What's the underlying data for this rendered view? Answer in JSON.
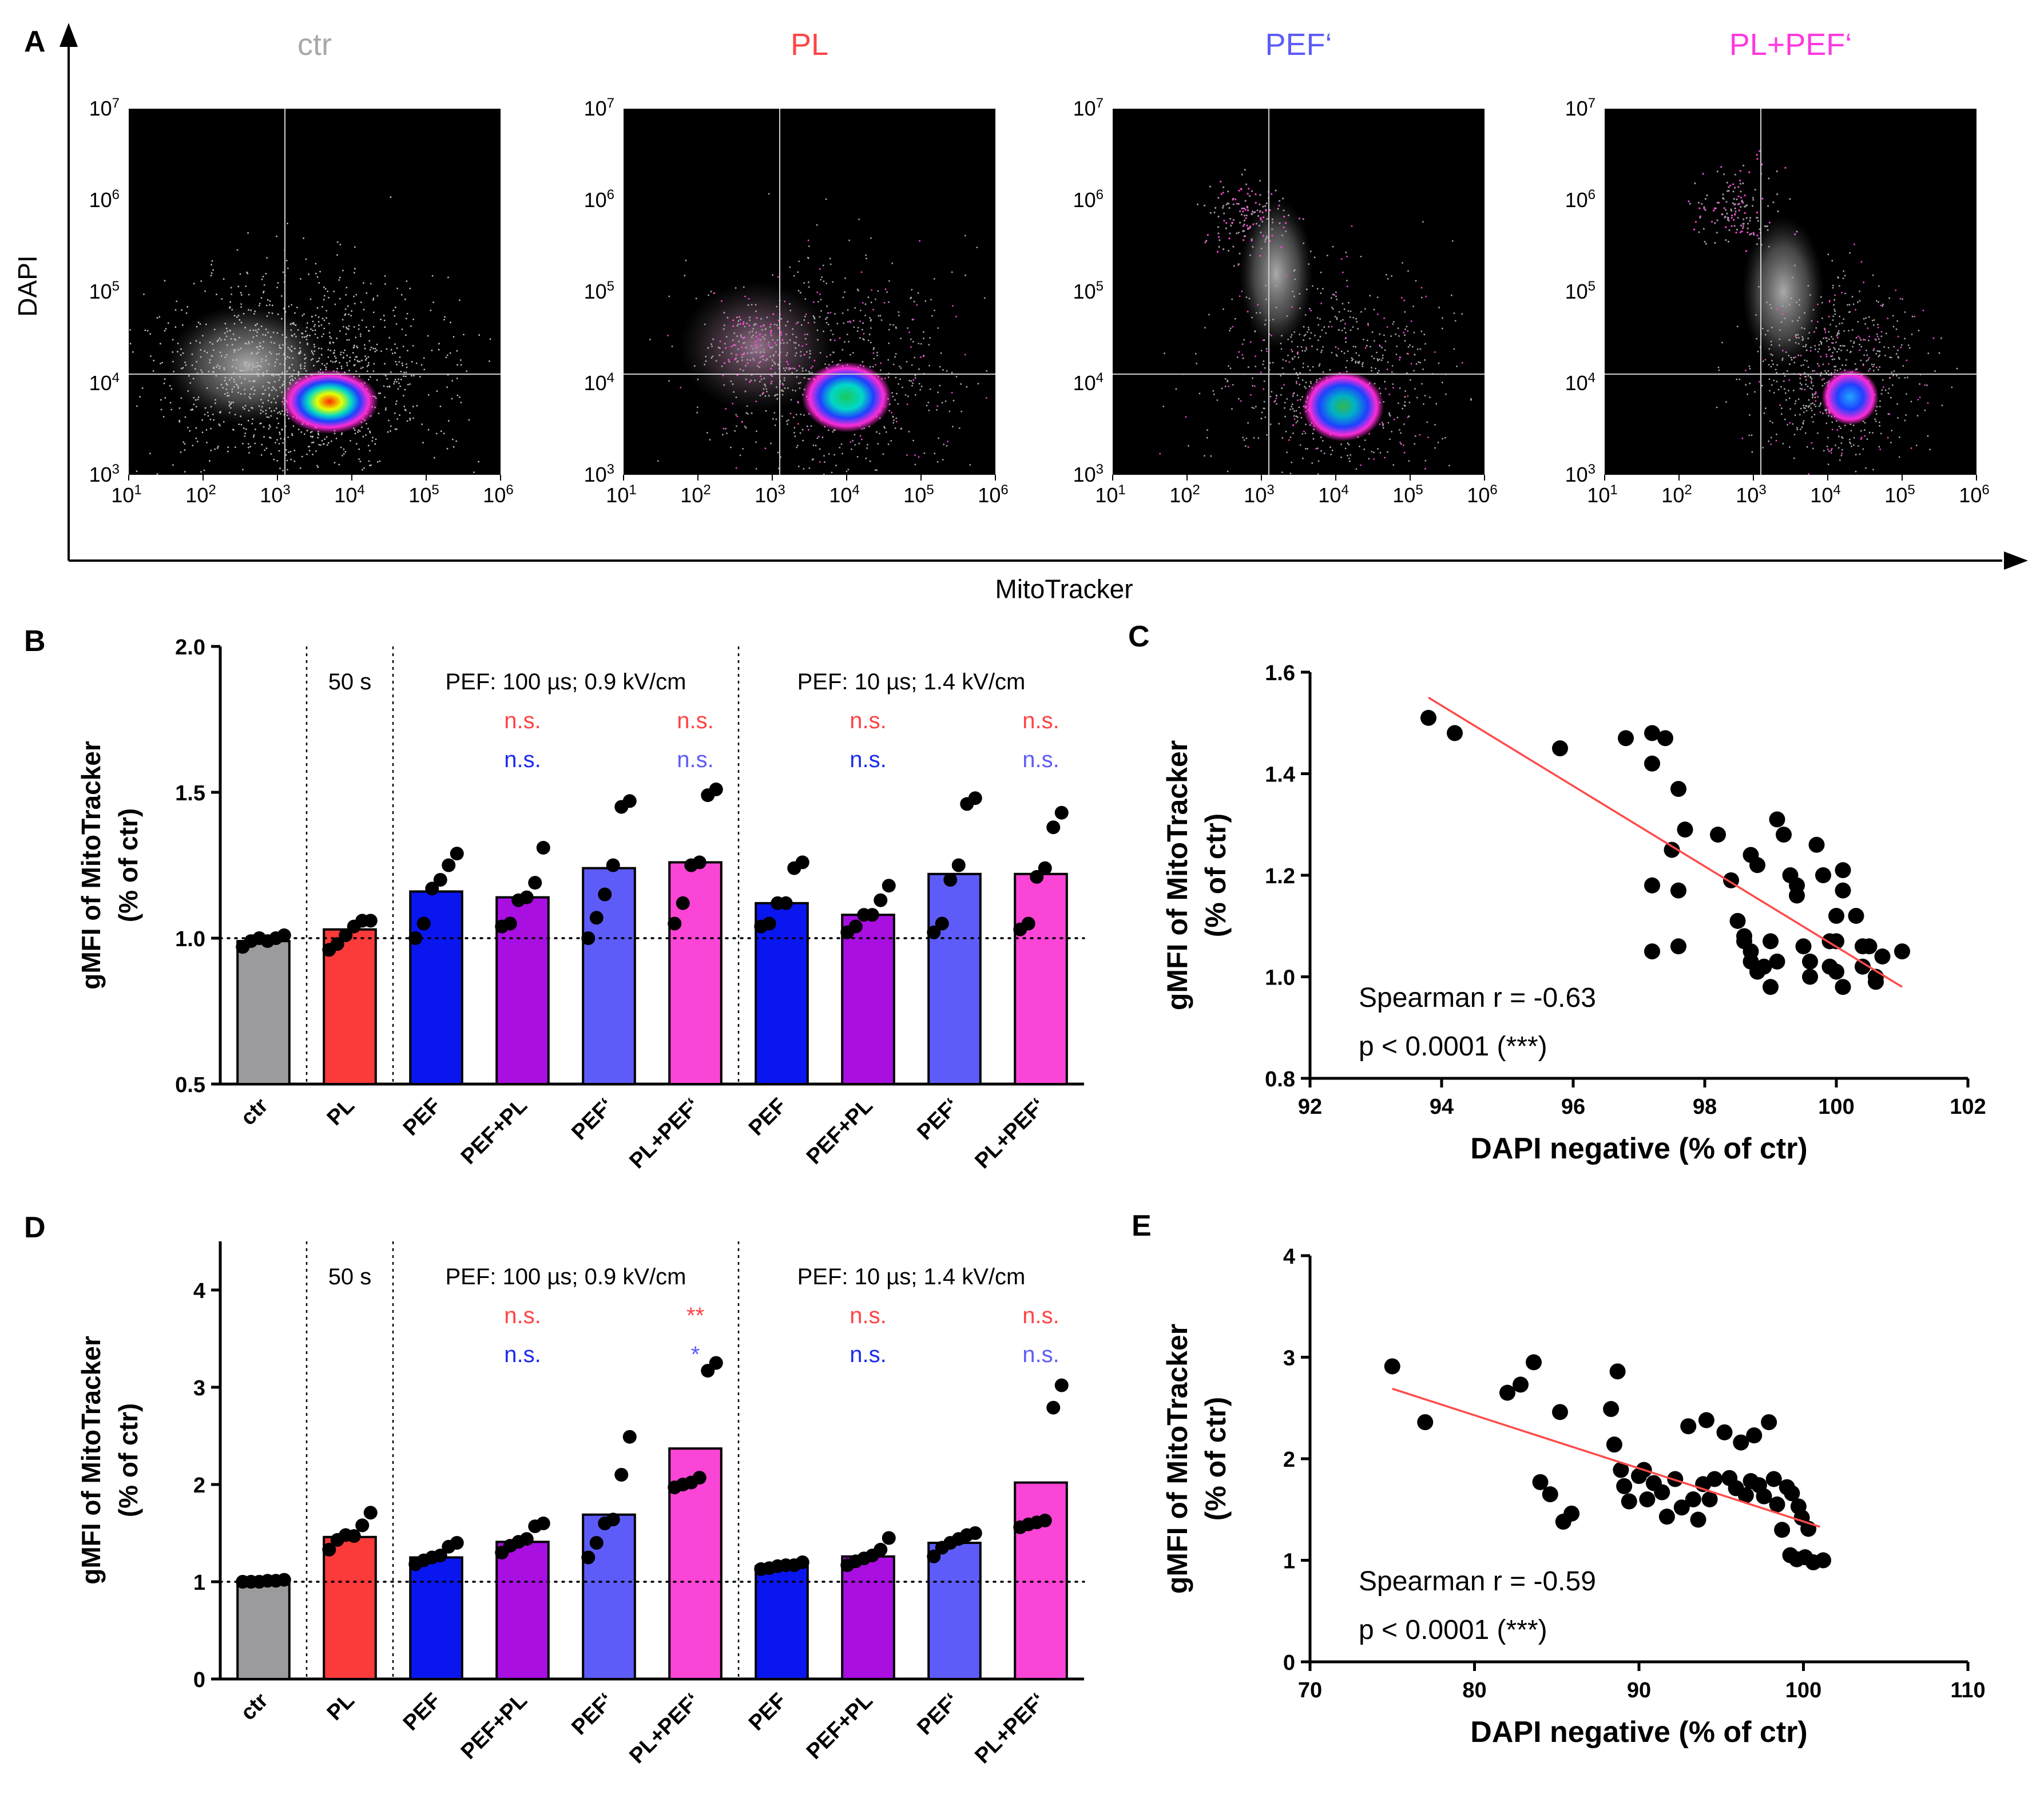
{
  "panel_labels": {
    "A": "A",
    "B": "B",
    "C": "C",
    "D": "D",
    "E": "E"
  },
  "colors": {
    "ctr": "#9b9a9c",
    "PL": "#fb3a3a",
    "PEF": "#0a16f0",
    "PEF+PL": "#a80fe0",
    "PEF'": "#5e5cf8",
    "PL+PEF'": "#fb45d6",
    "regression": "#ff4a4a",
    "sig_red": "#ff4444",
    "sig_blue": "#1a2bef",
    "sig_lightblue": "#5e5cf8",
    "title_ctr": "#a8a8a8",
    "title_PL": "#ff4444",
    "title_PEF": "#5e5cf8",
    "title_PLPEF": "#ff38e0"
  },
  "chart_data": [
    {
      "id": "A",
      "type": "scatter",
      "kind": "flow-cytometry-density",
      "xlabel": "MitoTracker",
      "ylabel": "DAPI",
      "x_scale": "log",
      "y_scale": "log",
      "xlim_log10": [
        1,
        6
      ],
      "ylim_log10": [
        3,
        7
      ],
      "x_ticks": [
        {
          "base": "10",
          "exp": "1"
        },
        {
          "base": "10",
          "exp": "2"
        },
        {
          "base": "10",
          "exp": "3"
        },
        {
          "base": "10",
          "exp": "4"
        },
        {
          "base": "10",
          "exp": "5"
        },
        {
          "base": "10",
          "exp": "6"
        }
      ],
      "y_ticks": [
        {
          "base": "10",
          "exp": "3"
        },
        {
          "base": "10",
          "exp": "4"
        },
        {
          "base": "10",
          "exp": "5"
        },
        {
          "base": "10",
          "exp": "6"
        },
        {
          "base": "10",
          "exp": "7"
        }
      ],
      "gates": {
        "x_log10": 3.1,
        "y_log10": 4.1
      },
      "plots": [
        {
          "title": "ctr",
          "title_color_key": "title_ctr",
          "gradient": "g-ctr",
          "haze": "g-haze",
          "center": [
            3.7,
            3.8
          ],
          "spread": [
            0.6,
            0.32
          ],
          "haze_center": [
            2.6,
            4.2
          ],
          "haze_spread": [
            2.0,
            1.2
          ],
          "upper_cluster": null
        },
        {
          "title": "PL",
          "title_color_key": "title_PL",
          "gradient": "g-pl",
          "haze": "g-haze2",
          "center": [
            4.0,
            3.85
          ],
          "spread": [
            0.55,
            0.35
          ],
          "haze_center": [
            2.8,
            4.4
          ],
          "haze_spread": [
            1.9,
            1.3
          ],
          "upper_cluster": [
            2.8,
            4.4
          ]
        },
        {
          "title": "PEF‘",
          "title_color_key": "title_PEF",
          "gradient": "g-pef",
          "haze": "g-haze",
          "center": [
            4.1,
            3.75
          ],
          "spread": [
            0.5,
            0.35
          ],
          "haze_center": [
            3.2,
            5.2
          ],
          "haze_spread": [
            0.9,
            1.5
          ],
          "upper_cluster": [
            2.8,
            5.8
          ]
        },
        {
          "title": "PL+PEF‘",
          "title_color_key": "title_PLPEF",
          "gradient": "g-plpef",
          "haze": "g-haze",
          "center": [
            4.3,
            3.85
          ],
          "spread": [
            0.35,
            0.28
          ],
          "haze_center": [
            3.4,
            5.0
          ],
          "haze_spread": [
            1.0,
            1.5
          ],
          "upper_cluster": [
            2.8,
            5.9
          ]
        }
      ]
    },
    {
      "id": "B",
      "type": "bar",
      "ylabel_line1": "gMFI of MitoTracker",
      "ylabel_line2": "(% of ctr)",
      "ylim": [
        0.5,
        2.0
      ],
      "y_ticks": [
        "0.5",
        "1.0",
        "1.5",
        "2.0"
      ],
      "y_tick_values": [
        0.5,
        1.0,
        1.5,
        2.0
      ],
      "reference_line": 1.0,
      "categories": [
        "ctr",
        "PL",
        "PEF",
        "PEF+PL",
        "PEF‘",
        "PL+PEF‘",
        "PEF",
        "PEF+PL",
        "PEF‘",
        "PL+PEF‘"
      ],
      "color_keys": [
        "ctr",
        "PL",
        "PEF",
        "PEF+PL",
        "PEF'",
        "PL+PEF'",
        "PEF",
        "PEF+PL",
        "PEF'",
        "PL+PEF'"
      ],
      "values": [
        0.99,
        1.03,
        1.16,
        1.14,
        1.24,
        1.26,
        1.12,
        1.08,
        1.22,
        1.22
      ],
      "points": [
        [
          0.97,
          0.99,
          1.0,
          0.99,
          1.0,
          1.01
        ],
        [
          0.96,
          0.98,
          1.01,
          1.04,
          1.06,
          1.06
        ],
        [
          1.0,
          1.05,
          1.17,
          1.2,
          1.25,
          1.29
        ],
        [
          1.04,
          1.05,
          1.13,
          1.14,
          1.19,
          1.31
        ],
        [
          1.0,
          1.07,
          1.15,
          1.25,
          1.45,
          1.47
        ],
        [
          1.05,
          1.12,
          1.25,
          1.26,
          1.49,
          1.51
        ],
        [
          1.04,
          1.05,
          1.12,
          1.12,
          1.24,
          1.26
        ],
        [
          1.02,
          1.04,
          1.08,
          1.08,
          1.13,
          1.18
        ],
        [
          1.02,
          1.05,
          1.2,
          1.25,
          1.46,
          1.48
        ],
        [
          1.03,
          1.05,
          1.21,
          1.24,
          1.38,
          1.43
        ]
      ],
      "group_notes": [
        "50 s",
        "PEF: 100 µs; 0.9 kV/cm",
        "PEF: 10 µs; 1.4 kV/cm"
      ],
      "significance": [
        {
          "bar": 3,
          "row": 1,
          "text": "n.s.",
          "color_key": "sig_red"
        },
        {
          "bar": 3,
          "row": 2,
          "text": "n.s.",
          "color_key": "sig_blue"
        },
        {
          "bar": 5,
          "row": 1,
          "text": "n.s.",
          "color_key": "sig_red"
        },
        {
          "bar": 5,
          "row": 2,
          "text": "n.s.",
          "color_key": "sig_lightblue"
        },
        {
          "bar": 7,
          "row": 1,
          "text": "n.s.",
          "color_key": "sig_red"
        },
        {
          "bar": 7,
          "row": 2,
          "text": "n.s.",
          "color_key": "sig_blue"
        },
        {
          "bar": 9,
          "row": 1,
          "text": "n.s.",
          "color_key": "sig_red"
        },
        {
          "bar": 9,
          "row": 2,
          "text": "n.s.",
          "color_key": "sig_lightblue"
        }
      ]
    },
    {
      "id": "C",
      "type": "scatter",
      "xlabel": "DAPI negative (% of ctr)",
      "ylabel_line1": "gMFI of MitoTracker",
      "ylabel_line2": "(% of ctr)",
      "xlim": [
        92,
        102
      ],
      "ylim": [
        0.8,
        1.6
      ],
      "x_ticks": [
        "92",
        "94",
        "96",
        "98",
        "100",
        "102"
      ],
      "x_tick_values": [
        92,
        94,
        96,
        98,
        100,
        102
      ],
      "y_ticks": [
        "0.8",
        "1.0",
        "1.2",
        "1.4",
        "1.6"
      ],
      "y_tick_values": [
        0.8,
        1.0,
        1.2,
        1.4,
        1.6
      ],
      "regression": {
        "x": [
          93.8,
          101.0
        ],
        "y": [
          1.55,
          0.98
        ]
      },
      "annotation_line1": "Spearman r = -0.63",
      "annotation_line2": "p < 0.0001 (***)",
      "points": [
        [
          93.8,
          1.51
        ],
        [
          94.2,
          1.48
        ],
        [
          95.8,
          1.45
        ],
        [
          96.8,
          1.47
        ],
        [
          97.2,
          1.48
        ],
        [
          97.4,
          1.47
        ],
        [
          97.2,
          1.42
        ],
        [
          97.6,
          1.37
        ],
        [
          97.7,
          1.29
        ],
        [
          97.5,
          1.25
        ],
        [
          97.6,
          1.17
        ],
        [
          97.2,
          1.18
        ],
        [
          97.2,
          1.05
        ],
        [
          97.6,
          1.06
        ],
        [
          98.2,
          1.28
        ],
        [
          98.4,
          1.19
        ],
        [
          98.5,
          1.11
        ],
        [
          98.6,
          1.08
        ],
        [
          98.7,
          1.24
        ],
        [
          98.8,
          1.22
        ],
        [
          98.6,
          1.07
        ],
        [
          98.7,
          1.05
        ],
        [
          98.7,
          1.03
        ],
        [
          98.8,
          1.01
        ],
        [
          98.9,
          1.02
        ],
        [
          99.0,
          1.07
        ],
        [
          99.0,
          0.98
        ],
        [
          99.1,
          1.03
        ],
        [
          99.1,
          1.31
        ],
        [
          99.2,
          1.28
        ],
        [
          99.3,
          1.2
        ],
        [
          99.4,
          1.16
        ],
        [
          99.4,
          1.18
        ],
        [
          99.5,
          1.06
        ],
        [
          99.6,
          1.03
        ],
        [
          99.7,
          1.26
        ],
        [
          99.8,
          1.2
        ],
        [
          99.9,
          1.07
        ],
        [
          99.9,
          1.02
        ],
        [
          100.0,
          1.07
        ],
        [
          100.0,
          1.12
        ],
        [
          100.1,
          1.17
        ],
        [
          100.1,
          1.21
        ],
        [
          100.0,
          1.01
        ],
        [
          100.1,
          0.98
        ],
        [
          100.3,
          1.12
        ],
        [
          100.4,
          1.06
        ],
        [
          100.4,
          1.02
        ],
        [
          100.5,
          1.06
        ],
        [
          100.6,
          1.0
        ],
        [
          100.7,
          1.04
        ],
        [
          101.0,
          1.05
        ],
        [
          99.6,
          1.0
        ],
        [
          100.6,
          0.99
        ]
      ]
    },
    {
      "id": "D",
      "type": "bar",
      "ylabel_line1": "gMFI of MitoTracker",
      "ylabel_line2": "(% of ctr)",
      "ylim": [
        0,
        4.5
      ],
      "y_ticks": [
        "0",
        "1",
        "2",
        "3",
        "4"
      ],
      "y_tick_values": [
        0,
        1,
        2,
        3,
        4
      ],
      "reference_line": 1.0,
      "categories": [
        "ctr",
        "PL",
        "PEF",
        "PEF+PL",
        "PEF‘",
        "PL+PEF‘",
        "PEF",
        "PEF+PL",
        "PEF‘",
        "PL+PEF‘"
      ],
      "color_keys": [
        "ctr",
        "PL",
        "PEF",
        "PEF+PL",
        "PEF'",
        "PL+PEF'",
        "PEF",
        "PEF+PL",
        "PEF'",
        "PL+PEF'"
      ],
      "values": [
        1.01,
        1.46,
        1.25,
        1.41,
        1.69,
        2.37,
        1.16,
        1.26,
        1.4,
        2.02
      ],
      "points": [
        [
          1.0,
          1.0,
          1.0,
          1.01,
          1.01,
          1.02
        ],
        [
          1.33,
          1.43,
          1.48,
          1.47,
          1.58,
          1.71
        ],
        [
          1.18,
          1.22,
          1.25,
          1.27,
          1.36,
          1.4
        ],
        [
          1.3,
          1.37,
          1.41,
          1.44,
          1.57,
          1.6
        ],
        [
          1.25,
          1.4,
          1.6,
          1.64,
          2.1,
          2.49
        ],
        [
          1.97,
          2.0,
          2.02,
          2.07,
          3.17,
          3.25
        ],
        [
          1.13,
          1.14,
          1.16,
          1.17,
          1.17,
          1.2
        ],
        [
          1.17,
          1.21,
          1.24,
          1.27,
          1.33,
          1.45
        ],
        [
          1.26,
          1.35,
          1.4,
          1.44,
          1.48,
          1.5
        ],
        [
          1.56,
          1.59,
          1.61,
          1.63,
          2.79,
          3.02
        ]
      ],
      "group_notes": [
        "50 s",
        "PEF: 100 µs; 0.9 kV/cm",
        "PEF: 10 µs; 1.4 kV/cm"
      ],
      "significance": [
        {
          "bar": 3,
          "row": 1,
          "text": "n.s.",
          "color_key": "sig_red"
        },
        {
          "bar": 3,
          "row": 2,
          "text": "n.s.",
          "color_key": "sig_blue"
        },
        {
          "bar": 5,
          "row": 1,
          "text": "**",
          "color_key": "sig_red"
        },
        {
          "bar": 5,
          "row": 2,
          "text": "*",
          "color_key": "sig_lightblue"
        },
        {
          "bar": 7,
          "row": 1,
          "text": "n.s.",
          "color_key": "sig_red"
        },
        {
          "bar": 7,
          "row": 2,
          "text": "n.s.",
          "color_key": "sig_blue"
        },
        {
          "bar": 9,
          "row": 1,
          "text": "n.s.",
          "color_key": "sig_red"
        },
        {
          "bar": 9,
          "row": 2,
          "text": "n.s.",
          "color_key": "sig_lightblue"
        }
      ]
    },
    {
      "id": "E",
      "type": "scatter",
      "xlabel": "DAPI negative (% of ctr)",
      "ylabel_line1": "gMFI of MitoTracker",
      "ylabel_line2": "(% of ctr)",
      "xlim": [
        70,
        110
      ],
      "ylim": [
        0,
        4
      ],
      "x_ticks": [
        "70",
        "80",
        "90",
        "100",
        "110"
      ],
      "x_tick_values": [
        70,
        80,
        90,
        100,
        110
      ],
      "y_ticks": [
        "0",
        "1",
        "2",
        "3",
        "4"
      ],
      "y_tick_values": [
        0,
        1,
        2,
        3,
        4
      ],
      "regression": {
        "x": [
          75.0,
          101.0
        ],
        "y": [
          2.69,
          1.33
        ]
      },
      "annotation_line1": "Spearman r = -0.59",
      "annotation_line2": "p < 0.0001 (***)",
      "points": [
        [
          75.0,
          2.91
        ],
        [
          77.0,
          2.36
        ],
        [
          82.0,
          2.65
        ],
        [
          82.8,
          2.73
        ],
        [
          83.6,
          2.95
        ],
        [
          84.0,
          1.77
        ],
        [
          84.6,
          1.65
        ],
        [
          85.2,
          2.46
        ],
        [
          85.4,
          1.38
        ],
        [
          85.9,
          1.46
        ],
        [
          88.3,
          2.49
        ],
        [
          88.5,
          2.14
        ],
        [
          88.7,
          2.86
        ],
        [
          88.9,
          1.89
        ],
        [
          89.1,
          1.73
        ],
        [
          89.4,
          1.58
        ],
        [
          90.0,
          1.83
        ],
        [
          90.3,
          1.89
        ],
        [
          90.5,
          1.6
        ],
        [
          90.9,
          1.76
        ],
        [
          91.4,
          1.67
        ],
        [
          91.7,
          1.43
        ],
        [
          92.2,
          1.8
        ],
        [
          92.6,
          1.52
        ],
        [
          93.0,
          2.32
        ],
        [
          93.3,
          1.6
        ],
        [
          93.6,
          1.4
        ],
        [
          93.9,
          1.75
        ],
        [
          94.1,
          2.38
        ],
        [
          94.3,
          1.6
        ],
        [
          94.6,
          1.8
        ],
        [
          95.2,
          2.26
        ],
        [
          95.5,
          1.81
        ],
        [
          95.9,
          1.71
        ],
        [
          96.2,
          2.16
        ],
        [
          96.5,
          1.64
        ],
        [
          96.8,
          1.78
        ],
        [
          97.0,
          2.23
        ],
        [
          97.3,
          1.74
        ],
        [
          97.6,
          1.63
        ],
        [
          97.9,
          2.36
        ],
        [
          98.2,
          1.8
        ],
        [
          98.4,
          1.55
        ],
        [
          98.7,
          1.3
        ],
        [
          99.0,
          1.72
        ],
        [
          99.3,
          1.66
        ],
        [
          99.6,
          1.01
        ],
        [
          99.7,
          1.53
        ],
        [
          99.9,
          1.42
        ],
        [
          100.1,
          1.03
        ],
        [
          100.3,
          1.31
        ],
        [
          100.6,
          0.98
        ],
        [
          101.2,
          1.0
        ],
        [
          99.2,
          1.05
        ]
      ]
    }
  ]
}
